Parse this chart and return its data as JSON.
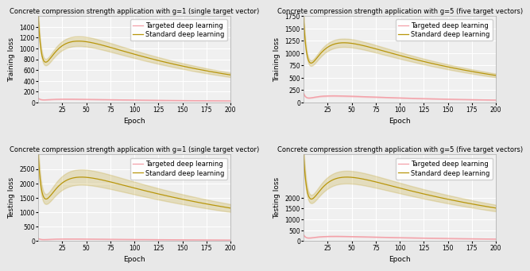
{
  "titles": [
    "Concrete compression strength application with g=1 (single target vector)",
    "Concrete compression strength application with g=5 (five target vectors)",
    "Concrete compression strength application with g=1 (single target vector)",
    "Concrete compression strength application with g=5 (five target vectors)"
  ],
  "ylabels": [
    "Training loss",
    "Training loss",
    "Testing loss",
    "Testing loss"
  ],
  "xlabel": "Epoch",
  "legend_labels": [
    "Targeted deep learning",
    "Standard deep learning"
  ],
  "targeted_color": "#f4a0a8",
  "standard_color": "#b8960c",
  "xlim": [
    0,
    200
  ],
  "xticks": [
    25,
    50,
    75,
    100,
    125,
    150,
    175,
    200
  ],
  "plots": [
    {
      "t_peak": 80,
      "t_end": 18,
      "t_decay_fast": 0.25,
      "t_decay_slow": 0.008,
      "s_peak": 1600,
      "s_end": 40,
      "s_decay_fast": 0.22,
      "s_decay_slow": 0.006,
      "s_band_scale": 0.08,
      "ylim": [
        0,
        1600
      ],
      "yticks": [
        0,
        200,
        400,
        600,
        800,
        1000,
        1200,
        1400
      ]
    },
    {
      "t_peak": 180,
      "t_end": 8,
      "t_decay_fast": 0.28,
      "t_decay_slow": 0.007,
      "s_peak": 1700,
      "s_end": 50,
      "s_decay_fast": 0.22,
      "s_decay_slow": 0.006,
      "s_band_scale": 0.07,
      "ylim": [
        0,
        1750
      ],
      "yticks": [
        0,
        250,
        500,
        750,
        1000,
        1250,
        1500,
        1750
      ]
    },
    {
      "t_peak": 90,
      "t_end": 10,
      "t_decay_fast": 0.25,
      "t_decay_slow": 0.006,
      "s_peak": 3000,
      "s_end": 60,
      "s_decay_fast": 0.2,
      "s_decay_slow": 0.005,
      "s_band_scale": 0.12,
      "ylim": [
        0,
        3000
      ],
      "yticks": [
        0,
        500,
        1000,
        1500,
        2000,
        2500
      ]
    },
    {
      "t_peak": 280,
      "t_end": 10,
      "t_decay_fast": 0.28,
      "t_decay_slow": 0.006,
      "s_peak": 4000,
      "s_end": 80,
      "s_decay_fast": 0.2,
      "s_decay_slow": 0.005,
      "s_band_scale": 0.1,
      "ylim": [
        0,
        4000
      ],
      "yticks": [
        0,
        500,
        1000,
        1500,
        2000
      ]
    }
  ],
  "fig_bg": "#e8e8e8",
  "axes_bg": "#f0f0f0",
  "grid_color": "white",
  "title_fontsize": 6.0,
  "label_fontsize": 6.5,
  "tick_fontsize": 5.5,
  "legend_fontsize": 6.0
}
